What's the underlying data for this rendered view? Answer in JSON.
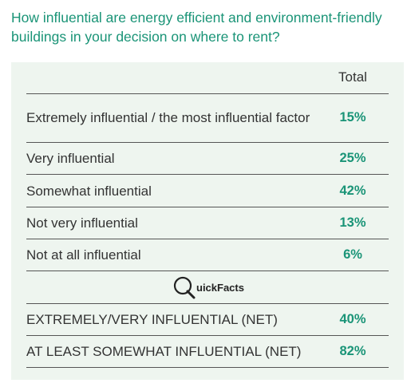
{
  "title": "How influential are energy efficient and environment-friendly buildings in your decision on where to rent?",
  "table": {
    "column_header": "Total",
    "rows": [
      [
        "Extremely influential / the most influential factor",
        "15%"
      ],
      [
        "Very influential",
        "25%"
      ],
      [
        "Somewhat influential",
        "42%"
      ],
      [
        "Not very influential",
        "13%"
      ],
      [
        "Not at all influential",
        "6%"
      ]
    ],
    "section_label": "uickFacts",
    "net_rows": [
      [
        "EXTREMELY/VERY INFLUENTIAL (NET)",
        "40%"
      ],
      [
        "AT LEAST SOMEWHAT INFLUENTIAL (NET)",
        "82%"
      ]
    ]
  }
}
